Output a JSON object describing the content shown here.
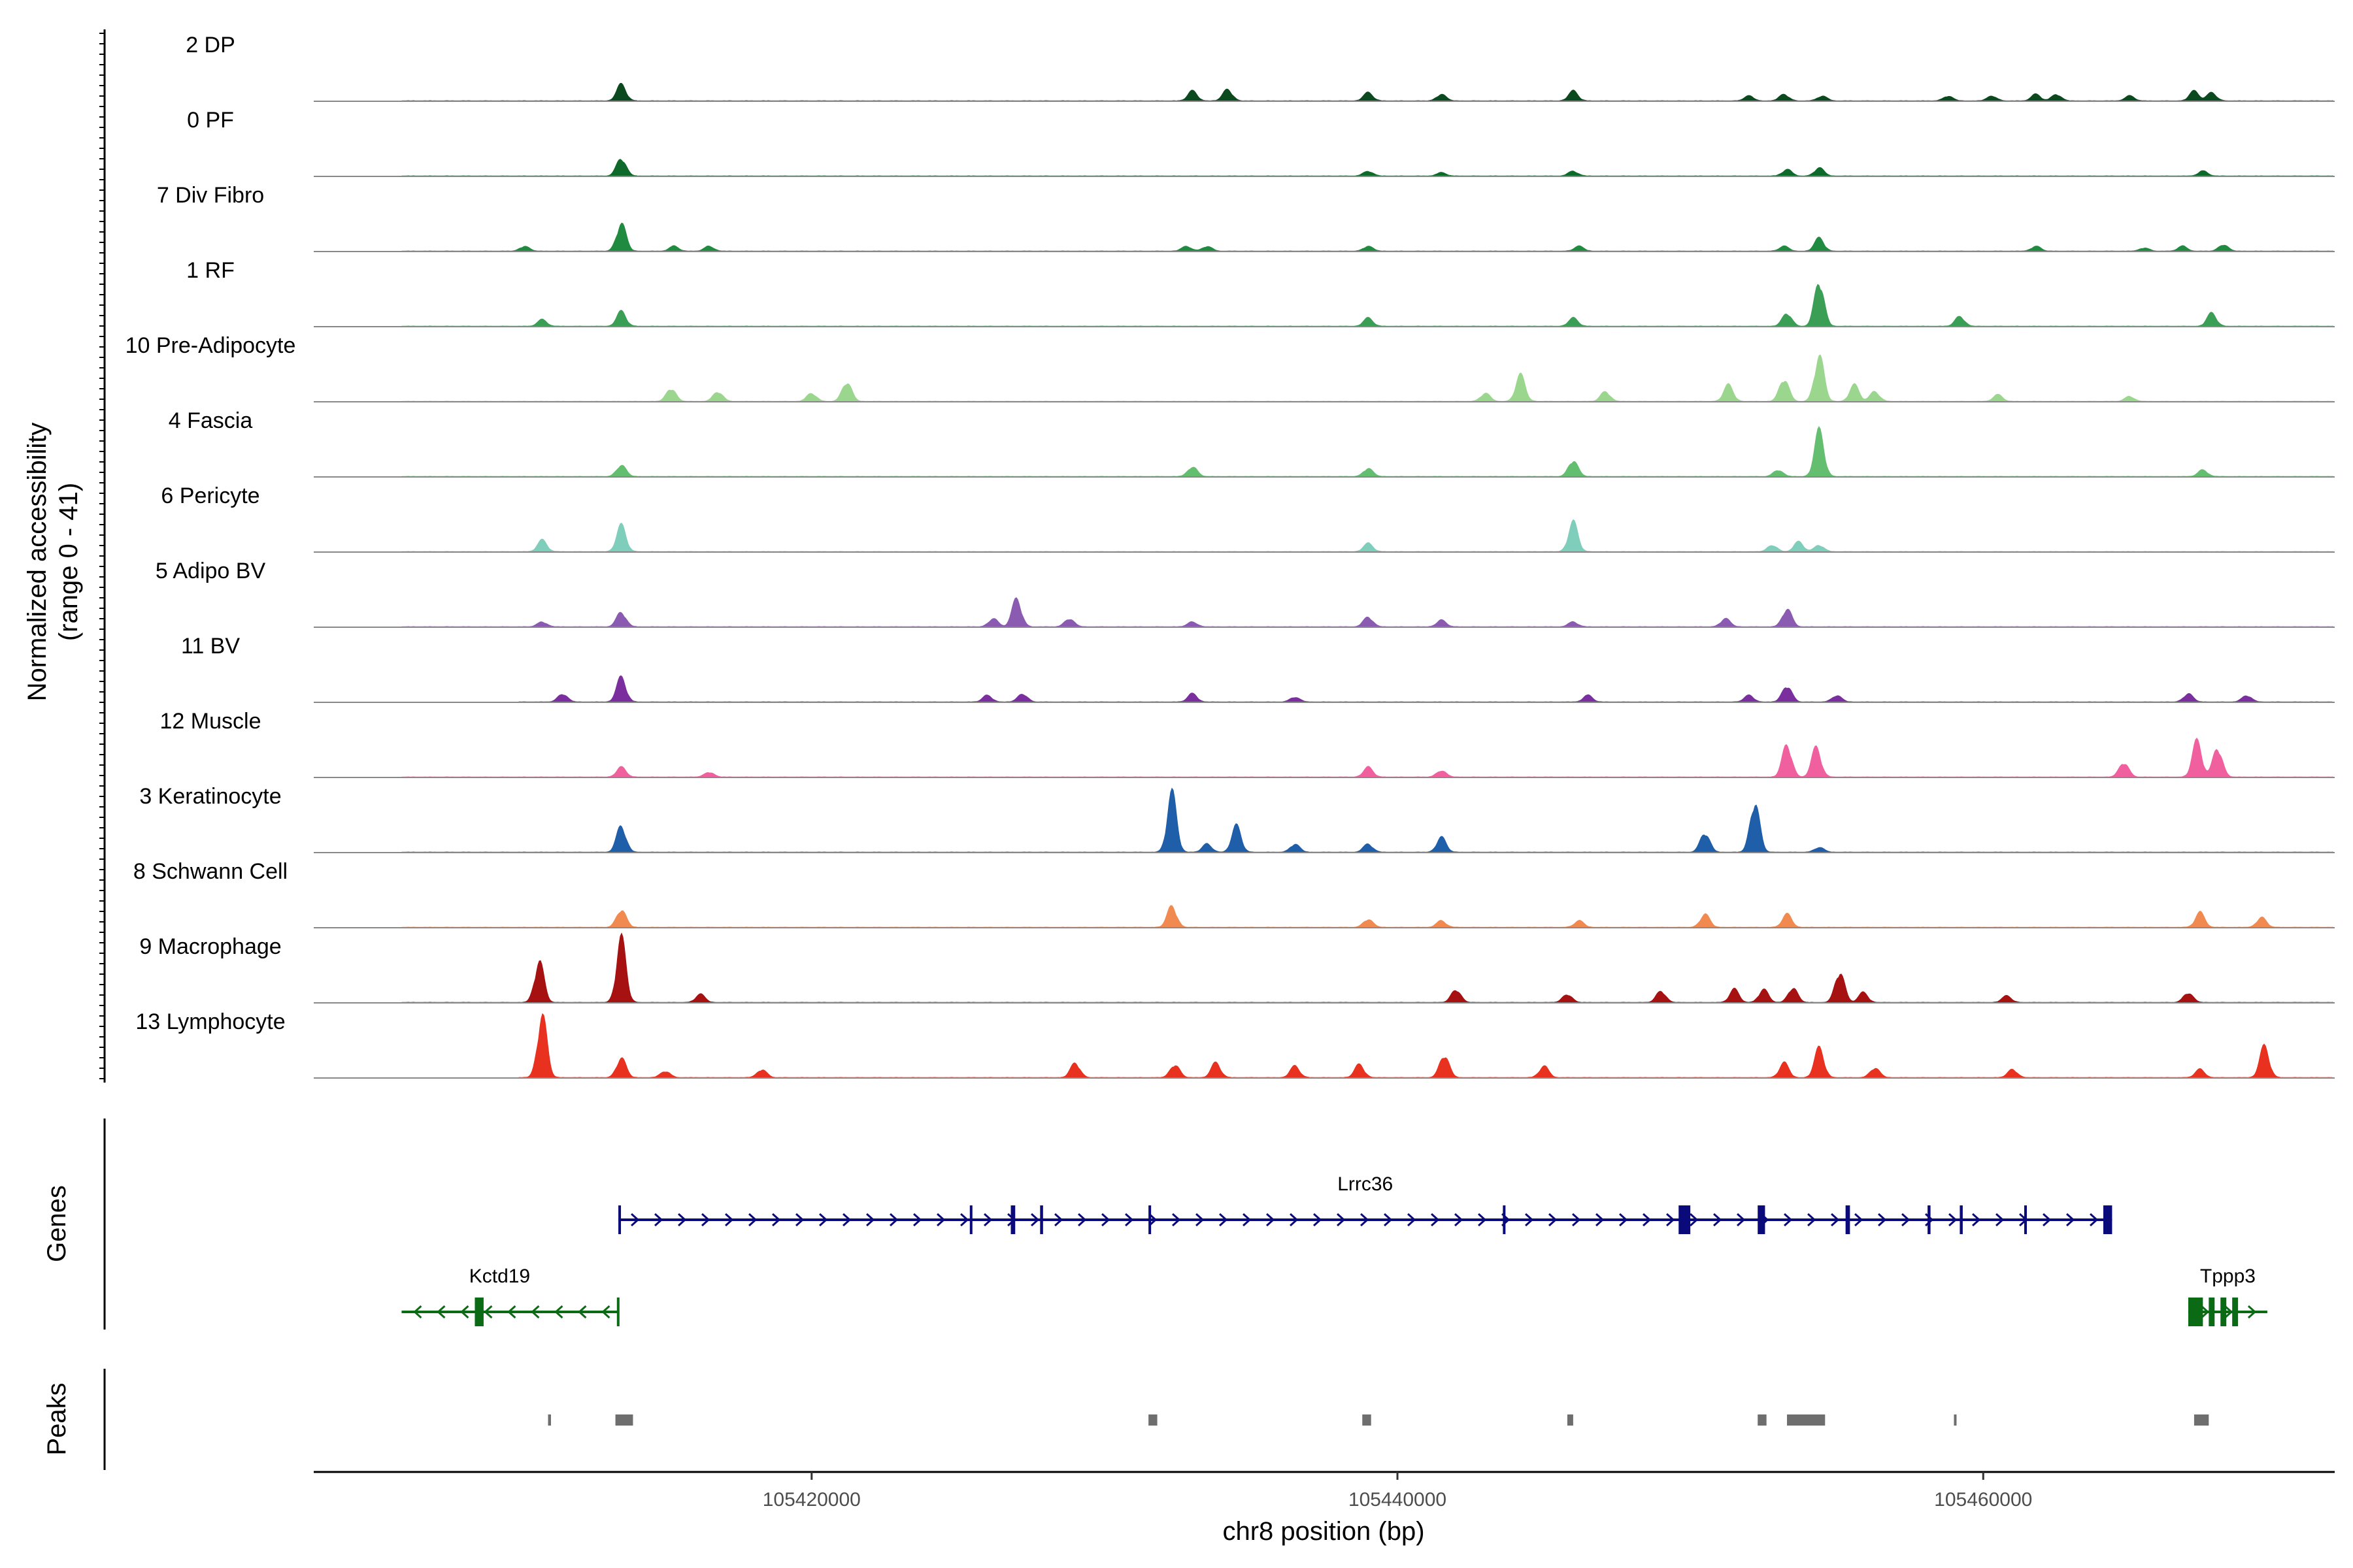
{
  "chart_data": {
    "type": "area",
    "title": "",
    "ylabel_line1": "Normalized accessibility",
    "ylabel_line2": "(range 0 - 41)",
    "ylim": [
      0,
      41
    ],
    "xlabel": "chr8 position (bp)",
    "xlim": [
      105403000,
      105472000
    ],
    "xticks": [
      105420000,
      105440000,
      105460000
    ],
    "xtick_labels": [
      "105420000",
      "105440000",
      "105460000"
    ],
    "panel_labels": {
      "genes": "Genes",
      "peaks": "Peaks"
    },
    "series": [
      {
        "name": "2 DP",
        "color": "#0b4a1e",
        "start": 105406000,
        "peaks": [
          [
            105413500,
            10
          ],
          [
            105433000,
            6
          ],
          [
            105434200,
            7
          ],
          [
            105439000,
            5
          ],
          [
            105441500,
            4
          ],
          [
            105446000,
            6
          ],
          [
            105452000,
            3
          ],
          [
            105453200,
            4
          ],
          [
            105454500,
            3
          ],
          [
            105458800,
            3
          ],
          [
            105460300,
            3
          ],
          [
            105461800,
            4
          ],
          [
            105462500,
            4
          ],
          [
            105465000,
            3
          ],
          [
            105467200,
            6
          ],
          [
            105467800,
            5
          ]
        ]
      },
      {
        "name": "0 PF",
        "color": "#0e6a2a",
        "start": 105406000,
        "peaks": [
          [
            105413500,
            11
          ],
          [
            105439000,
            3
          ],
          [
            105441500,
            2
          ],
          [
            105446000,
            3
          ],
          [
            105453300,
            4
          ],
          [
            105454400,
            5
          ],
          [
            105467500,
            3
          ]
        ]
      },
      {
        "name": "7 Div Fibro",
        "color": "#208b40",
        "start": 105406000,
        "peaks": [
          [
            105410200,
            3
          ],
          [
            105413500,
            17
          ],
          [
            105415300,
            3
          ],
          [
            105416500,
            3
          ],
          [
            105432800,
            3
          ],
          [
            105433500,
            3
          ],
          [
            105439000,
            3
          ],
          [
            105446200,
            3
          ],
          [
            105454400,
            8
          ],
          [
            105453200,
            3
          ],
          [
            105461800,
            3
          ],
          [
            105465500,
            2
          ],
          [
            105466800,
            3
          ],
          [
            105468200,
            4
          ]
        ]
      },
      {
        "name": "1 RF",
        "color": "#3a9e55",
        "start": 105406000,
        "peaks": [
          [
            105410800,
            4
          ],
          [
            105413500,
            9
          ],
          [
            105439000,
            5
          ],
          [
            105446000,
            5
          ],
          [
            105453300,
            8
          ],
          [
            105454400,
            28
          ],
          [
            105459200,
            6
          ],
          [
            105467800,
            8
          ]
        ]
      },
      {
        "name": "10 Pre-Adipocyte",
        "color": "#9bd68e",
        "start": 105406000,
        "peaks": [
          [
            105415200,
            8
          ],
          [
            105416800,
            6
          ],
          [
            105420000,
            5
          ],
          [
            105421200,
            12
          ],
          [
            105443000,
            5
          ],
          [
            105444200,
            16
          ],
          [
            105447100,
            6
          ],
          [
            105451300,
            10
          ],
          [
            105453200,
            14
          ],
          [
            105454400,
            28
          ],
          [
            105455600,
            10
          ],
          [
            105456300,
            6
          ],
          [
            105460500,
            4
          ],
          [
            105465000,
            3
          ]
        ]
      },
      {
        "name": "4 Fascia",
        "color": "#63be70",
        "start": 105406000,
        "peaks": [
          [
            105413500,
            7
          ],
          [
            105433000,
            6
          ],
          [
            105439000,
            5
          ],
          [
            105446000,
            10
          ],
          [
            105453000,
            4
          ],
          [
            105454400,
            28
          ],
          [
            105467500,
            4
          ]
        ]
      },
      {
        "name": "6 Pericyte",
        "color": "#7fcdbb",
        "start": 105406000,
        "peaks": [
          [
            105410800,
            7
          ],
          [
            105413500,
            16
          ],
          [
            105439000,
            5
          ],
          [
            105446000,
            18
          ],
          [
            105452800,
            4
          ],
          [
            105453700,
            6
          ],
          [
            105454400,
            4
          ]
        ]
      },
      {
        "name": "5 Adipo BV",
        "color": "#8a5bb0",
        "start": 105406000,
        "peaks": [
          [
            105410800,
            3
          ],
          [
            105413500,
            9
          ],
          [
            105427000,
            17
          ],
          [
            105426200,
            5
          ],
          [
            105428800,
            5
          ],
          [
            105433000,
            3
          ],
          [
            105439000,
            6
          ],
          [
            105441500,
            4
          ],
          [
            105446000,
            3
          ],
          [
            105451200,
            5
          ],
          [
            105453300,
            11
          ]
        ]
      },
      {
        "name": "11 BV",
        "color": "#7b2f9e",
        "start": 105410000,
        "peaks": [
          [
            105411500,
            5
          ],
          [
            105413500,
            15
          ],
          [
            105426000,
            4
          ],
          [
            105427200,
            5
          ],
          [
            105433000,
            5
          ],
          [
            105436500,
            3
          ],
          [
            105446500,
            4
          ],
          [
            105452000,
            4
          ],
          [
            105453300,
            10
          ],
          [
            105455000,
            4
          ],
          [
            105467000,
            5
          ],
          [
            105469000,
            4
          ]
        ]
      },
      {
        "name": "12 Muscle",
        "color": "#f0609e",
        "start": 105406000,
        "peaks": [
          [
            105413500,
            6
          ],
          [
            105416500,
            3
          ],
          [
            105439000,
            6
          ],
          [
            105441500,
            4
          ],
          [
            105453300,
            20
          ],
          [
            105454300,
            18
          ],
          [
            105464800,
            9
          ],
          [
            105467300,
            22
          ],
          [
            105468000,
            18
          ]
        ]
      },
      {
        "name": "3 Keratinocyte",
        "color": "#1f5ea8",
        "start": 105406000,
        "peaks": [
          [
            105413500,
            16
          ],
          [
            105432300,
            36
          ],
          [
            105434500,
            16
          ],
          [
            105433500,
            5
          ],
          [
            105436500,
            5
          ],
          [
            105439000,
            5
          ],
          [
            105441500,
            9
          ],
          [
            105450500,
            12
          ],
          [
            105452200,
            31
          ],
          [
            105454400,
            3
          ]
        ]
      },
      {
        "name": "8 Schwann Cell",
        "color": "#f08a50",
        "start": 105406000,
        "peaks": [
          [
            105413500,
            11
          ],
          [
            105432300,
            13
          ],
          [
            105439000,
            5
          ],
          [
            105441500,
            4
          ],
          [
            105446200,
            4
          ],
          [
            105450500,
            8
          ],
          [
            105453300,
            8
          ],
          [
            105467400,
            9
          ],
          [
            105469500,
            6
          ]
        ]
      },
      {
        "name": "9 Macrophage",
        "color": "#a61111",
        "start": 105406000,
        "peaks": [
          [
            105410700,
            25
          ],
          [
            105413500,
            39
          ],
          [
            105416200,
            5
          ],
          [
            105442000,
            8
          ],
          [
            105445800,
            5
          ],
          [
            105449000,
            7
          ],
          [
            105451500,
            8
          ],
          [
            105452500,
            8
          ],
          [
            105453500,
            9
          ],
          [
            105455100,
            19
          ],
          [
            105455900,
            6
          ],
          [
            105460800,
            4
          ],
          [
            105467000,
            6
          ]
        ]
      },
      {
        "name": "13 Lymphocyte",
        "color": "#e8311f",
        "start": 105410000,
        "peaks": [
          [
            105410800,
            38
          ],
          [
            105413500,
            12
          ],
          [
            105415000,
            4
          ],
          [
            105418300,
            5
          ],
          [
            105429000,
            9
          ],
          [
            105432400,
            8
          ],
          [
            105433800,
            9
          ],
          [
            105436500,
            7
          ],
          [
            105438700,
            8
          ],
          [
            105441600,
            14
          ],
          [
            105445000,
            7
          ],
          [
            105453200,
            9
          ],
          [
            105454400,
            18
          ],
          [
            105456300,
            6
          ],
          [
            105461000,
            5
          ],
          [
            105467400,
            5
          ],
          [
            105469600,
            19
          ]
        ]
      }
    ],
    "genes": [
      {
        "name": "Lrrc36",
        "strand": "+",
        "start": 105413400,
        "end": 105464400,
        "color": "#0a0a7a",
        "exons": [
          [
            105413400,
            105413450
          ],
          [
            105425400,
            105425450
          ],
          [
            105426800,
            105426950
          ],
          [
            105427800,
            105427900
          ],
          [
            105431500,
            105431550
          ],
          [
            105443600,
            105443650
          ],
          [
            105449600,
            105450000
          ],
          [
            105452300,
            105452550
          ],
          [
            105455300,
            105455450
          ],
          [
            105458100,
            105458200
          ],
          [
            105459200,
            105459300
          ],
          [
            105461400,
            105461450
          ],
          [
            105464100,
            105464400
          ]
        ]
      },
      {
        "name": "Kctd19",
        "strand": "-",
        "start": 105406000,
        "end": 105413400,
        "color": "#0b6b14",
        "exons": [
          [
            105408500,
            105408800
          ],
          [
            105413350,
            105413400
          ]
        ]
      },
      {
        "name": "Tppp3",
        "strand": "+",
        "start": 105467000,
        "end": 105469700,
        "color": "#0b6b14",
        "exons": [
          [
            105467000,
            105467500
          ],
          [
            105467700,
            105467900
          ],
          [
            105468100,
            105468300
          ],
          [
            105468500,
            105468700
          ]
        ]
      }
    ],
    "peaks_track": [
      [
        105411000,
        105411100
      ],
      [
        105413300,
        105413900
      ],
      [
        105431500,
        105431800
      ],
      [
        105438800,
        105439100
      ],
      [
        105445800,
        105446000
      ],
      [
        105452300,
        105452600
      ],
      [
        105453300,
        105454600
      ],
      [
        105459000,
        105459050
      ],
      [
        105467200,
        105467700
      ]
    ]
  }
}
